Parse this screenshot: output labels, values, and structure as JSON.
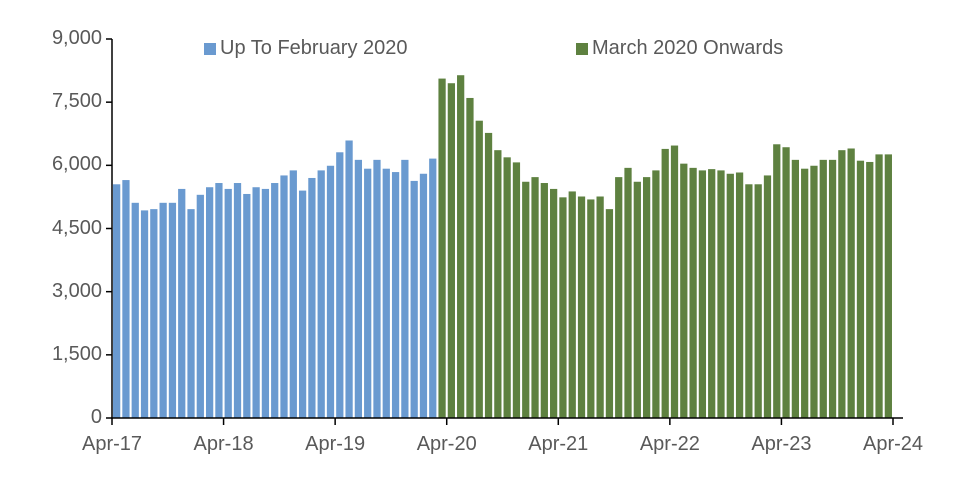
{
  "chart_data": {
    "type": "bar",
    "title": "",
    "xlabel": "",
    "ylabel": "",
    "ylim": [
      0,
      9000
    ],
    "yticks": [
      "0",
      "1,500",
      "3,000",
      "4,500",
      "6,000",
      "7,500",
      "9,000"
    ],
    "ytick_values": [
      0,
      1500,
      3000,
      4500,
      6000,
      7500,
      9000
    ],
    "xticks": [
      "Apr-17",
      "Apr-18",
      "Apr-19",
      "Apr-20",
      "Apr-21",
      "Apr-22",
      "Apr-23",
      "Apr-24"
    ],
    "grid": false,
    "legend_position": "top",
    "series": [
      {
        "name": "Up To February 2020",
        "color": "#6A9AD0",
        "start": "Apr-17",
        "end": "Feb-20",
        "values": [
          5550,
          5650,
          5110,
          4930,
          4960,
          5110,
          5110,
          5440,
          4960,
          5300,
          5480,
          5580,
          5440,
          5580,
          5320,
          5480,
          5440,
          5580,
          5760,
          5880,
          5400,
          5700,
          5880,
          5990,
          6310,
          6590,
          6130,
          5920,
          6130,
          5920,
          5840,
          6130,
          5630,
          5800,
          6160
        ]
      },
      {
        "name": "March 2020 Onwards",
        "color": "#5E8140",
        "start": "Mar-20",
        "end": "Mar-24",
        "values": [
          8060,
          7950,
          8140,
          7600,
          7060,
          6770,
          6360,
          6190,
          6070,
          5610,
          5720,
          5580,
          5440,
          5240,
          5380,
          5260,
          5190,
          5260,
          4960,
          5720,
          5940,
          5610,
          5720,
          5880,
          6390,
          6470,
          6040,
          5940,
          5880,
          5910,
          5880,
          5800,
          5830,
          5550,
          5550,
          5760,
          6500,
          6430,
          6130,
          5920,
          5990,
          6130,
          6130,
          6360,
          6400,
          6110,
          6080,
          6260,
          6260
        ]
      }
    ]
  },
  "legend": {
    "items": [
      {
        "label": "Up To February 2020",
        "color": "#6A9AD0"
      },
      {
        "label": "March 2020 Onwards",
        "color": "#5E8140"
      }
    ]
  }
}
